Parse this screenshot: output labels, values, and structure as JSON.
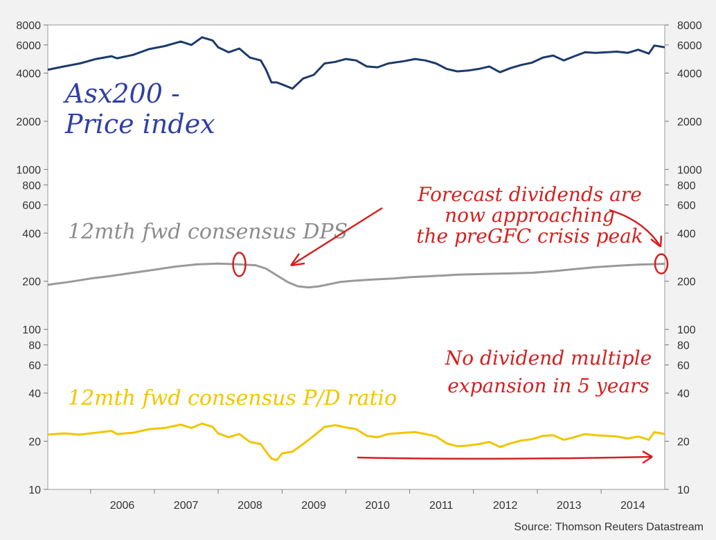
{
  "chart_data": {
    "type": "line",
    "y_scale": "log",
    "ylim": [
      10,
      8000
    ],
    "xlim": [
      "2005-05-01",
      "2014-12-31"
    ],
    "y_ticks": [
      {
        "value": 8000,
        "label": "8000"
      },
      {
        "value": 6000,
        "label": "6000"
      },
      {
        "value": 4000,
        "label": "4000"
      },
      {
        "value": 2000,
        "label": "2000"
      },
      {
        "value": 1000,
        "label": "1000"
      },
      {
        "value": 800,
        "label": "800"
      },
      {
        "value": 600,
        "label": "600"
      },
      {
        "value": 400,
        "label": "400"
      },
      {
        "value": 200,
        "label": "200"
      },
      {
        "value": 100,
        "label": "100"
      },
      {
        "value": 80,
        "label": "80"
      },
      {
        "value": 60,
        "label": "60"
      },
      {
        "value": 40,
        "label": "40"
      },
      {
        "value": 20,
        "label": "20"
      },
      {
        "value": 10,
        "label": "10"
      }
    ],
    "x_ticks": [
      {
        "value": "2006-07-01",
        "label": "2006"
      },
      {
        "value": "2007-07-01",
        "label": "2007"
      },
      {
        "value": "2008-07-01",
        "label": "2008"
      },
      {
        "value": "2009-07-01",
        "label": "2009"
      },
      {
        "value": "2010-07-01",
        "label": "2010"
      },
      {
        "value": "2011-07-01",
        "label": "2011"
      },
      {
        "value": "2012-07-01",
        "label": "2012"
      },
      {
        "value": "2013-07-01",
        "label": "2013"
      },
      {
        "value": "2014-07-01",
        "label": "2014"
      }
    ],
    "series": [
      {
        "color": "#1b3a6b",
        "points": [
          [
            "2005-05-01",
            4200
          ],
          [
            "2005-08-01",
            4400
          ],
          [
            "2005-11-01",
            4600
          ],
          [
            "2006-02-01",
            4900
          ],
          [
            "2006-05-01",
            5100
          ],
          [
            "2006-06-01",
            4950
          ],
          [
            "2006-09-01",
            5200
          ],
          [
            "2006-12-01",
            5650
          ],
          [
            "2007-03-01",
            5900
          ],
          [
            "2007-06-01",
            6300
          ],
          [
            "2007-08-01",
            6000
          ],
          [
            "2007-10-01",
            6700
          ],
          [
            "2007-12-01",
            6400
          ],
          [
            "2008-01-01",
            5800
          ],
          [
            "2008-03-01",
            5400
          ],
          [
            "2008-05-01",
            5700
          ],
          [
            "2008-07-01",
            5000
          ],
          [
            "2008-09-01",
            4800
          ],
          [
            "2008-10-01",
            4200
          ],
          [
            "2008-11-01",
            3500
          ],
          [
            "2008-12-01",
            3500
          ],
          [
            "2009-01-01",
            3400
          ],
          [
            "2009-03-01",
            3200
          ],
          [
            "2009-05-01",
            3700
          ],
          [
            "2009-07-01",
            3900
          ],
          [
            "2009-09-01",
            4600
          ],
          [
            "2009-11-01",
            4700
          ],
          [
            "2010-01-01",
            4900
          ],
          [
            "2010-03-01",
            4800
          ],
          [
            "2010-05-01",
            4400
          ],
          [
            "2010-07-01",
            4350
          ],
          [
            "2010-09-01",
            4600
          ],
          [
            "2010-12-01",
            4750
          ],
          [
            "2011-02-01",
            4900
          ],
          [
            "2011-04-01",
            4800
          ],
          [
            "2011-06-01",
            4600
          ],
          [
            "2011-08-01",
            4250
          ],
          [
            "2011-10-01",
            4100
          ],
          [
            "2011-12-01",
            4150
          ],
          [
            "2012-02-01",
            4250
          ],
          [
            "2012-04-01",
            4400
          ],
          [
            "2012-06-01",
            4050
          ],
          [
            "2012-08-01",
            4300
          ],
          [
            "2012-10-01",
            4500
          ],
          [
            "2012-12-01",
            4650
          ],
          [
            "2013-02-01",
            5000
          ],
          [
            "2013-04-01",
            5150
          ],
          [
            "2013-06-01",
            4800
          ],
          [
            "2013-08-01",
            5100
          ],
          [
            "2013-10-01",
            5400
          ],
          [
            "2013-12-01",
            5350
          ],
          [
            "2014-02-01",
            5400
          ],
          [
            "2014-04-01",
            5450
          ],
          [
            "2014-06-01",
            5350
          ],
          [
            "2014-08-01",
            5600
          ],
          [
            "2014-10-01",
            5300
          ],
          [
            "2014-11-01",
            5950
          ],
          [
            "2014-12-31",
            5800
          ]
        ]
      },
      {
        "color": "#999999",
        "points": [
          [
            "2005-05-01",
            190
          ],
          [
            "2005-09-01",
            198
          ],
          [
            "2006-01-01",
            208
          ],
          [
            "2006-05-01",
            216
          ],
          [
            "2006-09-01",
            226
          ],
          [
            "2007-01-01",
            236
          ],
          [
            "2007-05-01",
            247
          ],
          [
            "2007-09-01",
            255
          ],
          [
            "2008-01-01",
            258
          ],
          [
            "2008-05-01",
            255
          ],
          [
            "2008-08-01",
            252
          ],
          [
            "2008-10-01",
            240
          ],
          [
            "2008-12-01",
            218
          ],
          [
            "2009-02-01",
            198
          ],
          [
            "2009-04-01",
            186
          ],
          [
            "2009-06-01",
            183
          ],
          [
            "2009-08-01",
            186
          ],
          [
            "2009-10-01",
            192
          ],
          [
            "2009-12-01",
            198
          ],
          [
            "2010-03-01",
            202
          ],
          [
            "2010-06-01",
            205
          ],
          [
            "2010-10-01",
            208
          ],
          [
            "2011-01-01",
            212
          ],
          [
            "2011-06-01",
            216
          ],
          [
            "2011-10-01",
            220
          ],
          [
            "2012-03-01",
            222
          ],
          [
            "2012-08-01",
            224
          ],
          [
            "2012-12-01",
            226
          ],
          [
            "2013-04-01",
            231
          ],
          [
            "2013-08-01",
            238
          ],
          [
            "2013-12-01",
            245
          ],
          [
            "2014-04-01",
            250
          ],
          [
            "2014-08-01",
            254
          ],
          [
            "2014-12-31",
            257
          ]
        ]
      },
      {
        "color": "#f2c500",
        "points": [
          [
            "2005-05-01",
            22
          ],
          [
            "2005-08-01",
            22.4
          ],
          [
            "2005-11-01",
            22.0
          ],
          [
            "2006-02-01",
            22.6
          ],
          [
            "2006-05-01",
            23.2
          ],
          [
            "2006-06-01",
            22.2
          ],
          [
            "2006-09-01",
            22.6
          ],
          [
            "2006-12-01",
            23.8
          ],
          [
            "2007-03-01",
            24.2
          ],
          [
            "2007-06-01",
            25.4
          ],
          [
            "2007-08-01",
            24.2
          ],
          [
            "2007-10-01",
            25.8
          ],
          [
            "2007-12-01",
            24.6
          ],
          [
            "2008-01-01",
            22.4
          ],
          [
            "2008-03-01",
            21.2
          ],
          [
            "2008-05-01",
            22.2
          ],
          [
            "2008-07-01",
            19.8
          ],
          [
            "2008-09-01",
            19.2
          ],
          [
            "2008-10-01",
            17.2
          ],
          [
            "2008-11-01",
            15.6
          ],
          [
            "2008-12-01",
            15.2
          ],
          [
            "2009-01-01",
            16.8
          ],
          [
            "2009-03-01",
            17.2
          ],
          [
            "2009-05-01",
            19.2
          ],
          [
            "2009-07-01",
            21.6
          ],
          [
            "2009-09-01",
            24.6
          ],
          [
            "2009-11-01",
            25.2
          ],
          [
            "2010-01-01",
            24.4
          ],
          [
            "2010-03-01",
            23.8
          ],
          [
            "2010-05-01",
            21.6
          ],
          [
            "2010-07-01",
            21.2
          ],
          [
            "2010-09-01",
            22.2
          ],
          [
            "2010-12-01",
            22.6
          ],
          [
            "2011-02-01",
            22.8
          ],
          [
            "2011-04-01",
            22.2
          ],
          [
            "2011-06-01",
            21.4
          ],
          [
            "2011-08-01",
            19.4
          ],
          [
            "2011-10-01",
            18.6
          ],
          [
            "2011-12-01",
            18.8
          ],
          [
            "2012-02-01",
            19.2
          ],
          [
            "2012-04-01",
            19.8
          ],
          [
            "2012-06-01",
            18.4
          ],
          [
            "2012-08-01",
            19.4
          ],
          [
            "2012-10-01",
            20.2
          ],
          [
            "2012-12-01",
            20.6
          ],
          [
            "2013-02-01",
            21.6
          ],
          [
            "2013-04-01",
            21.8
          ],
          [
            "2013-06-01",
            20.4
          ],
          [
            "2013-08-01",
            21.2
          ],
          [
            "2013-10-01",
            22.2
          ],
          [
            "2013-12-01",
            21.8
          ],
          [
            "2014-02-01",
            21.6
          ],
          [
            "2014-04-01",
            21.4
          ],
          [
            "2014-06-01",
            20.8
          ],
          [
            "2014-08-01",
            21.4
          ],
          [
            "2014-10-01",
            20.4
          ],
          [
            "2014-11-01",
            22.8
          ],
          [
            "2014-12-31",
            22.2
          ]
        ]
      }
    ],
    "annotations": [
      {
        "text_lines": [
          "Asx200 -",
          "Price index"
        ],
        "color": "#2f3fa3"
      },
      {
        "text_lines": [
          "12mth fwd consensus DPS"
        ],
        "color": "#8c8c8c"
      },
      {
        "text_lines": [
          "Forecast dividends are",
          "now approaching",
          "the preGFC crisis peak"
        ],
        "color": "#d42020"
      },
      {
        "text_lines": [
          "12mth fwd consensus P/D ratio"
        ],
        "color": "#f2c500"
      },
      {
        "text_lines": [
          "No dividend multiple",
          "expansion in 5 years"
        ],
        "color": "#d42020"
      }
    ],
    "source": "Source: Thomson Reuters Datastream"
  }
}
